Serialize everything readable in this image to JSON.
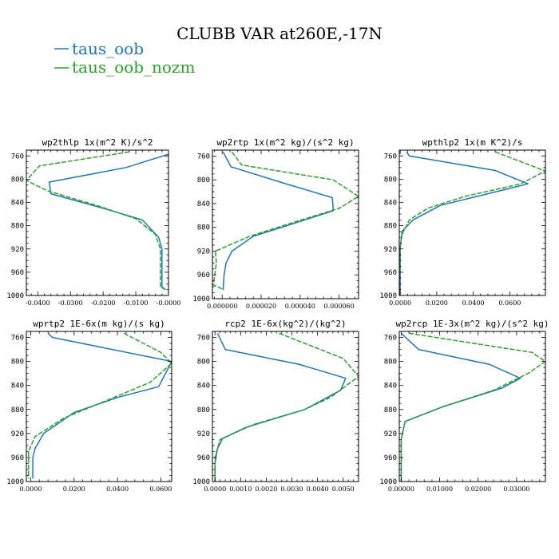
{
  "figure": {
    "title": "CLUBB VAR at260E,-17N"
  },
  "legend": {
    "placement": "top-left",
    "items": [
      {
        "name": "taus_oob",
        "color": "#1f77b4"
      },
      {
        "name": "taus_oob_nozm",
        "color": "#2ca02c"
      }
    ]
  },
  "chart_data": [
    {
      "type": "line",
      "title": "wp2thlp  1x(m^2 K)/s^2",
      "xlim": [
        -0.0435,
        0.0
      ],
      "ylim": [
        1000,
        750
      ],
      "xticks": [
        -0.04,
        -0.03,
        -0.02,
        -0.01,
        0.0
      ],
      "xtick_labels": [
        "-0.0400",
        "-0.0300",
        "-0.0200",
        "-0.0100",
        "-0.0000"
      ],
      "yticks": [
        760,
        800,
        840,
        880,
        920,
        960,
        1000
      ],
      "ytick_labels": [
        "760",
        "800",
        "840",
        "880",
        "920",
        "960",
        "1000"
      ],
      "grid": false,
      "series": [
        {
          "name": "taus_oob",
          "color": "#1f77b4",
          "dash": "none",
          "x": [
            0.0,
            -0.013,
            -0.0365,
            -0.036,
            -0.02,
            -0.008,
            -0.003,
            -0.002,
            -0.002,
            -0.002,
            -0.001
          ],
          "y": [
            757,
            780,
            805,
            825,
            850,
            870,
            900,
            920,
            950,
            985,
            990
          ]
        },
        {
          "name": "taus_oob_nozm",
          "color": "#2ca02c",
          "dash": "6,2",
          "x": [
            -0.012,
            -0.0395,
            -0.0435,
            -0.037,
            -0.022,
            -0.01,
            -0.004,
            -0.0025,
            -0.0025,
            -0.0025,
            -0.001
          ],
          "y": [
            753,
            777,
            802,
            820,
            845,
            868,
            895,
            920,
            950,
            985,
            990
          ]
        }
      ]
    },
    {
      "type": "line",
      "title": "wp2rtp  1x(m^2 kg)/(s^2 kg)",
      "xlim": [
        -5e-06,
        7e-05
      ],
      "ylim": [
        1000,
        750
      ],
      "xticks": [
        0.0,
        2e-05,
        4e-05,
        6e-05
      ],
      "xtick_labels": [
        "0.000000",
        "0.000020",
        "0.000040",
        "0.000060"
      ],
      "yticks": [
        760,
        800,
        840,
        880,
        920,
        960,
        1000
      ],
      "ytick_labels": [
        "760",
        "800",
        "840",
        "880",
        "920",
        "960",
        "1000"
      ],
      "grid": false,
      "series": [
        {
          "name": "taus_oob",
          "color": "#1f77b4",
          "dash": "none",
          "x": [
            5e-07,
            4.5e-06,
            3.1e-05,
            5.65e-05,
            5.7e-05,
            4e-05,
            1.6e-05,
            5e-06,
            2e-06,
            1e-06,
            5e-07
          ],
          "y": [
            753,
            778,
            805,
            830,
            852,
            870,
            895,
            920,
            940,
            960,
            985
          ]
        },
        {
          "name": "taus_oob_nozm",
          "color": "#2ca02c",
          "dash": "6,2",
          "x": [
            5e-06,
            1e-05,
            5.7e-05,
            7e-05,
            6e-05,
            4e-05,
            1.4e-05,
            -3.5e-06,
            -3e-06,
            -4.5e-06,
            1e-06
          ],
          "y": [
            753,
            775,
            800,
            828,
            848,
            868,
            895,
            920,
            940,
            977,
            985
          ]
        }
      ]
    },
    {
      "type": "line",
      "title": "wpthlp2  1x(m K^2)/s",
      "xlim": [
        -0.0005,
        0.0795
      ],
      "ylim": [
        1000,
        750
      ],
      "xticks": [
        0.0,
        0.02,
        0.04,
        0.06
      ],
      "xtick_labels": [
        "0.0000",
        "0.0200",
        "0.0400",
        "0.0600"
      ],
      "yticks": [
        760,
        800,
        840,
        880,
        920,
        960,
        1000
      ],
      "ytick_labels": [
        "760",
        "800",
        "840",
        "880",
        "920",
        "960",
        "1000"
      ],
      "grid": false,
      "series": [
        {
          "name": "taus_oob",
          "color": "#1f77b4",
          "dash": "none",
          "x": [
            0.0035,
            0.005,
            0.052,
            0.07,
            0.022,
            0.007,
            0.001,
            0.0,
            0.0,
            0.0
          ],
          "y": [
            753,
            760,
            785,
            808,
            845,
            870,
            890,
            920,
            960,
            1000
          ]
        },
        {
          "name": "taus_oob_nozm",
          "color": "#2ca02c",
          "dash": "6,2",
          "x": [
            0.052,
            0.0795,
            0.066,
            0.035,
            0.015,
            0.005,
            0.001,
            0.0,
            0.0
          ],
          "y": [
            753,
            786,
            808,
            830,
            850,
            870,
            895,
            920,
            960
          ]
        }
      ]
    },
    {
      "type": "line",
      "title": "wprtp2  1E-6x(m kg)/(s kg)",
      "xlim": [
        -0.002,
        0.065
      ],
      "ylim": [
        1000,
        750
      ],
      "xticks": [
        0.0,
        0.02,
        0.04,
        0.06
      ],
      "xtick_labels": [
        "0.0000",
        "0.0200",
        "0.0400",
        "0.0600"
      ],
      "yticks": [
        760,
        800,
        840,
        880,
        920,
        960,
        1000
      ],
      "ytick_labels": [
        "760",
        "800",
        "840",
        "880",
        "920",
        "960",
        "1000"
      ],
      "grid": false,
      "series": [
        {
          "name": "taus_oob",
          "color": "#1f77b4",
          "dash": "none",
          "x": [
            0.008,
            0.01,
            0.065,
            0.059,
            0.04,
            0.02,
            0.006,
            0.002,
            0.001,
            0.001,
            0.001
          ],
          "y": [
            753,
            760,
            800,
            842,
            860,
            885,
            920,
            945,
            960,
            980,
            995
          ]
        },
        {
          "name": "taus_oob_nozm",
          "color": "#2ca02c",
          "dash": "6,2",
          "x": [
            0.043,
            0.06,
            0.065,
            0.055,
            0.035,
            0.015,
            0.002,
            -0.001,
            -0.001,
            -0.001
          ],
          "y": [
            753,
            785,
            803,
            835,
            865,
            895,
            925,
            950,
            970,
            995
          ]
        }
      ]
    },
    {
      "type": "line",
      "title": "rcp2  1E-6x(kg^2)/(kg^2)",
      "xlim": [
        -0.0001,
        0.0056
      ],
      "ylim": [
        1000,
        750
      ],
      "xticks": [
        0.0,
        0.001,
        0.002,
        0.003,
        0.004,
        0.005
      ],
      "xtick_labels": [
        "0.0000",
        "0.0010",
        "0.0020",
        "0.0030",
        "0.0040",
        "0.0050"
      ],
      "yticks": [
        760,
        800,
        840,
        880,
        920,
        960,
        1000
      ],
      "ytick_labels": [
        "760",
        "800",
        "840",
        "880",
        "920",
        "960",
        "1000"
      ],
      "grid": false,
      "series": [
        {
          "name": "taus_oob",
          "color": "#1f77b4",
          "dash": "none",
          "x": [
            0.0001,
            0.0004,
            0.0033,
            0.0051,
            0.0049,
            0.0035,
            0.0012,
            0.0003,
            0.0001,
            0.0,
            0.0
          ],
          "y": [
            753,
            780,
            805,
            828,
            848,
            880,
            910,
            928,
            945,
            970,
            1000
          ]
        },
        {
          "name": "taus_oob_nozm",
          "color": "#2ca02c",
          "dash": "6,2",
          "x": [
            0.0025,
            0.005,
            0.0056,
            0.0045,
            0.0035,
            0.0015,
            0.0002,
            0.0,
            0.0
          ],
          "y": [
            753,
            795,
            825,
            860,
            880,
            905,
            930,
            960,
            1000
          ]
        }
      ]
    },
    {
      "type": "line",
      "title": "wp2rcp  1E-3x(m^2 kg)/(s^2 kg)",
      "xlim": [
        -0.0005,
        0.0375
      ],
      "ylim": [
        1000,
        750
      ],
      "xticks": [
        0.0,
        0.01,
        0.02,
        0.03
      ],
      "xtick_labels": [
        "0.00000",
        "0.01000",
        "0.02000",
        "0.03000"
      ],
      "yticks": [
        760,
        800,
        840,
        880,
        920,
        960,
        1000
      ],
      "ytick_labels": [
        "760",
        "800",
        "840",
        "880",
        "920",
        "960",
        "1000"
      ],
      "grid": false,
      "series": [
        {
          "name": "taus_oob",
          "color": "#1f77b4",
          "dash": "none",
          "x": [
            0.0,
            0.0045,
            0.023,
            0.031,
            0.026,
            0.011,
            0.001,
            0.0,
            0.0
          ],
          "y": [
            753,
            780,
            805,
            828,
            845,
            875,
            900,
            930,
            1000
          ]
        },
        {
          "name": "taus_oob_nozm",
          "color": "#2ca02c",
          "dash": "6,2",
          "x": [
            0.002,
            0.034,
            0.0375,
            0.033,
            0.024,
            0.011,
            0.001,
            0.0,
            0.0
          ],
          "y": [
            753,
            785,
            800,
            820,
            848,
            875,
            900,
            930,
            1000
          ]
        }
      ]
    }
  ]
}
